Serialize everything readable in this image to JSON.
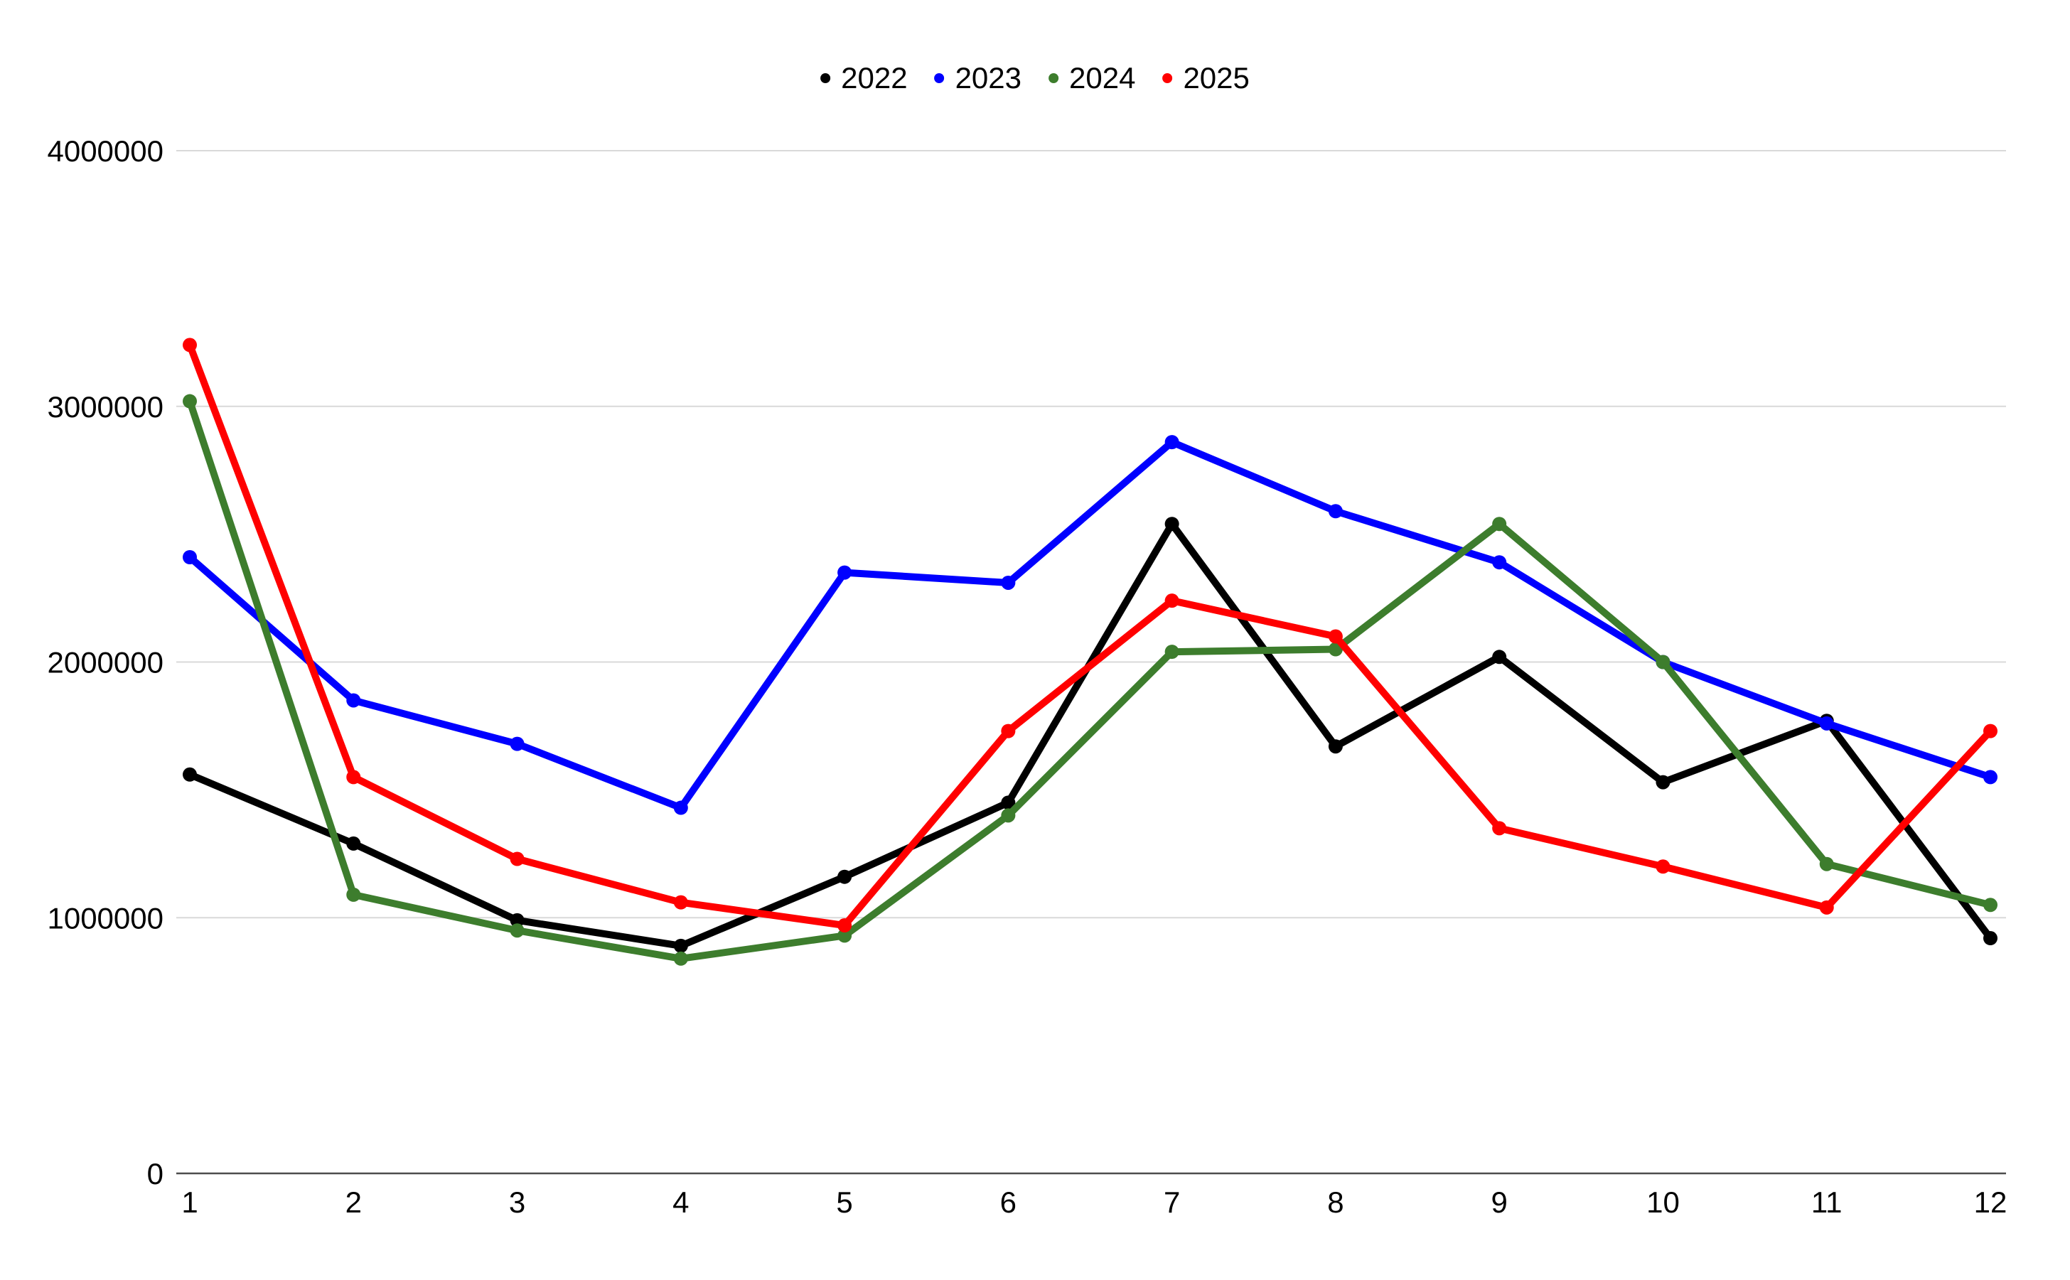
{
  "chart_data": {
    "type": "line",
    "title": "",
    "x": [
      1,
      2,
      3,
      4,
      5,
      6,
      7,
      8,
      9,
      10,
      11,
      12
    ],
    "x_tick_labels": [
      "1",
      "2",
      "3",
      "4",
      "5",
      "6",
      "7",
      "8",
      "9",
      "10",
      "11",
      "12"
    ],
    "y_ticks": [
      0,
      1000000,
      2000000,
      3000000,
      4000000
    ],
    "y_tick_labels": [
      "0",
      "1000000",
      "2000000",
      "3000000",
      "4000000"
    ],
    "ylim": [
      0,
      4000000
    ],
    "grid": true,
    "legend_position": "top-center",
    "series": [
      {
        "name": "2022",
        "color": "#000000",
        "values": [
          1560000,
          1290000,
          990000,
          890000,
          1160000,
          1450000,
          2540000,
          1670000,
          2020000,
          1530000,
          1770000,
          920000
        ]
      },
      {
        "name": "2023",
        "color": "#0000ff",
        "values": [
          2410000,
          1850000,
          1680000,
          1430000,
          2350000,
          2310000,
          2860000,
          2590000,
          2390000,
          2000000,
          1760000,
          1550000
        ]
      },
      {
        "name": "2024",
        "color": "#3d7d2d",
        "values": [
          3020000,
          1090000,
          950000,
          840000,
          930000,
          1400000,
          2040000,
          2050000,
          2540000,
          2000000,
          1210000,
          1050000
        ]
      },
      {
        "name": "2025",
        "color": "#ff0000",
        "values": [
          3240000,
          1550000,
          1230000,
          1060000,
          970000,
          1730000,
          2240000,
          2100000,
          1350000,
          1200000,
          1040000,
          1730000
        ]
      }
    ]
  },
  "styles": {
    "background": "#ffffff",
    "gridline_color": "#d9d9d9",
    "axis_color": "#4d4d4d",
    "text_color": "#000000"
  }
}
